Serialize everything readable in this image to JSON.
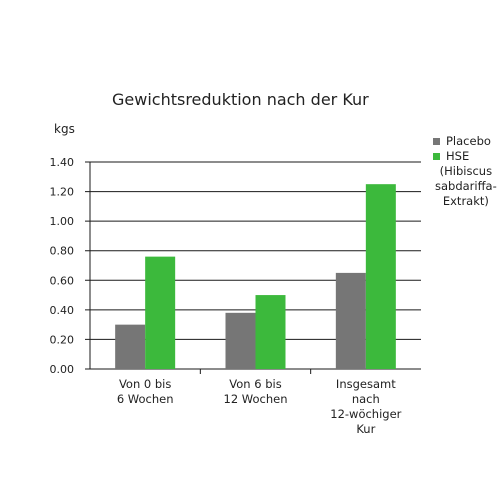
{
  "chart_data": {
    "type": "bar",
    "title": "Gewichtsreduktion nach der Kur",
    "ylabel": "kgs",
    "xlabel": "",
    "ylim": [
      0,
      1.4
    ],
    "yticks": [
      "0.00",
      "0.20",
      "0.40",
      "0.60",
      "0.80",
      "1.00",
      "1.20",
      "1.40"
    ],
    "categories": [
      "Von 0 bis\n6 Wochen",
      "Von 6 bis\n12 Wochen",
      "Insgesamt\nnach\n12-wöchiger\nKur"
    ],
    "series": [
      {
        "name": "Placebo",
        "values": [
          0.3,
          0.38,
          0.65
        ],
        "color": "#767676"
      },
      {
        "name": "HSE (Hibiscus sabdariffa-Extrakt)",
        "values": [
          0.76,
          0.5,
          1.25
        ],
        "color": "#3cb93c"
      }
    ],
    "grid": true,
    "legend": "right"
  },
  "legend": {
    "placebo": "Placebo",
    "hse_line1": "HSE",
    "hse_rest": "(Hibiscus\nsabdariffa-\nExtrakt)"
  }
}
